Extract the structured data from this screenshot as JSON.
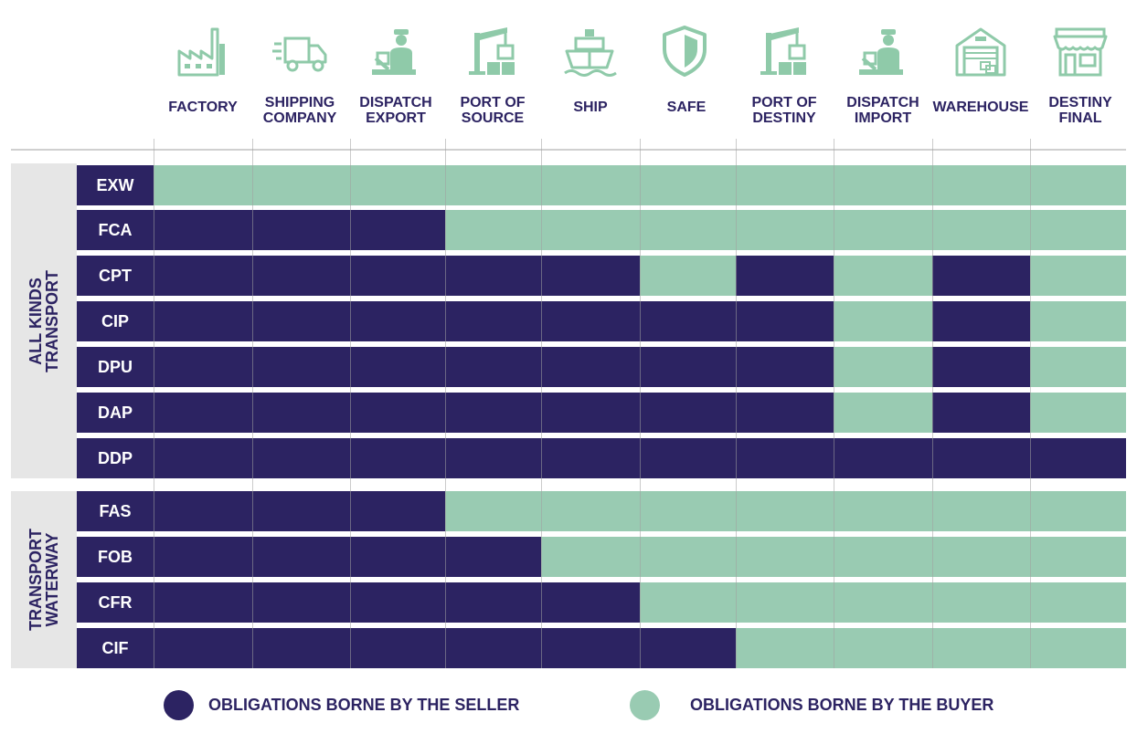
{
  "colors": {
    "seller": "#2c2362",
    "buyer": "#99cbb2",
    "icon": "#8fcaa9",
    "group_bg": "#e6e6e6"
  },
  "columns": [
    {
      "icon": "factory-icon",
      "label_lines": [
        "FACTORY"
      ]
    },
    {
      "icon": "truck-icon",
      "label_lines": [
        "SHIPPING",
        "COMPANY"
      ]
    },
    {
      "icon": "customs-officer-icon",
      "label_lines": [
        "DISPATCH",
        "EXPORT"
      ]
    },
    {
      "icon": "crane-icon",
      "label_lines": [
        "PORT OF",
        "SOURCE"
      ]
    },
    {
      "icon": "ship-icon",
      "label_lines": [
        "SHIP"
      ]
    },
    {
      "icon": "shield-icon",
      "label_lines": [
        "SAFE"
      ]
    },
    {
      "icon": "crane-icon",
      "label_lines": [
        "PORT OF",
        "DESTINY"
      ]
    },
    {
      "icon": "customs-officer-icon",
      "label_lines": [
        "DISPATCH",
        "IMPORT"
      ]
    },
    {
      "icon": "warehouse-icon",
      "label_lines": [
        "WAREHOUSE"
      ]
    },
    {
      "icon": "store-icon",
      "label_lines": [
        "DESTINY",
        "FINAL"
      ]
    }
  ],
  "groups": [
    {
      "label_lines": [
        "ALL KINDS",
        "TRANSPORT"
      ]
    },
    {
      "label_lines": [
        "TRANSPORT",
        "WATERWAY"
      ]
    }
  ],
  "rows": [
    {
      "code": "EXW",
      "group": 0,
      "cells": [
        "B",
        "B",
        "B",
        "B",
        "B",
        "B",
        "B",
        "B",
        "B",
        "B"
      ]
    },
    {
      "code": "FCA",
      "group": 0,
      "cells": [
        "S",
        "S",
        "S",
        "B",
        "B",
        "B",
        "B",
        "B",
        "B",
        "B"
      ]
    },
    {
      "code": "CPT",
      "group": 0,
      "cells": [
        "S",
        "S",
        "S",
        "S",
        "S",
        "B",
        "S",
        "B",
        "S",
        "B"
      ]
    },
    {
      "code": "CIP",
      "group": 0,
      "cells": [
        "S",
        "S",
        "S",
        "S",
        "S",
        "S",
        "S",
        "B",
        "S",
        "B"
      ]
    },
    {
      "code": "DPU",
      "group": 0,
      "cells": [
        "S",
        "S",
        "S",
        "S",
        "S",
        "S",
        "S",
        "B",
        "S",
        "B"
      ]
    },
    {
      "code": "DAP",
      "group": 0,
      "cells": [
        "S",
        "S",
        "S",
        "S",
        "S",
        "S",
        "S",
        "B",
        "S",
        "B"
      ]
    },
    {
      "code": "DDP",
      "group": 0,
      "cells": [
        "S",
        "S",
        "S",
        "S",
        "S",
        "S",
        "S",
        "S",
        "S",
        "S"
      ]
    },
    {
      "code": "FAS",
      "group": 1,
      "cells": [
        "S",
        "S",
        "S",
        "B",
        "B",
        "B",
        "B",
        "B",
        "B",
        "B"
      ]
    },
    {
      "code": "FOB",
      "group": 1,
      "cells": [
        "S",
        "S",
        "S",
        "S",
        "B",
        "B",
        "B",
        "B",
        "B",
        "B"
      ]
    },
    {
      "code": "CFR",
      "group": 1,
      "cells": [
        "S",
        "S",
        "S",
        "S",
        "S",
        "B",
        "B",
        "B",
        "B",
        "B"
      ]
    },
    {
      "code": "CIF",
      "group": 1,
      "cells": [
        "S",
        "S",
        "S",
        "S",
        "S",
        "S",
        "B",
        "B",
        "B",
        "B"
      ]
    }
  ],
  "legend": {
    "seller": "OBLIGATIONS BORNE BY THE SELLER",
    "buyer": "OBLIGATIONS BORNE BY THE BUYER"
  }
}
